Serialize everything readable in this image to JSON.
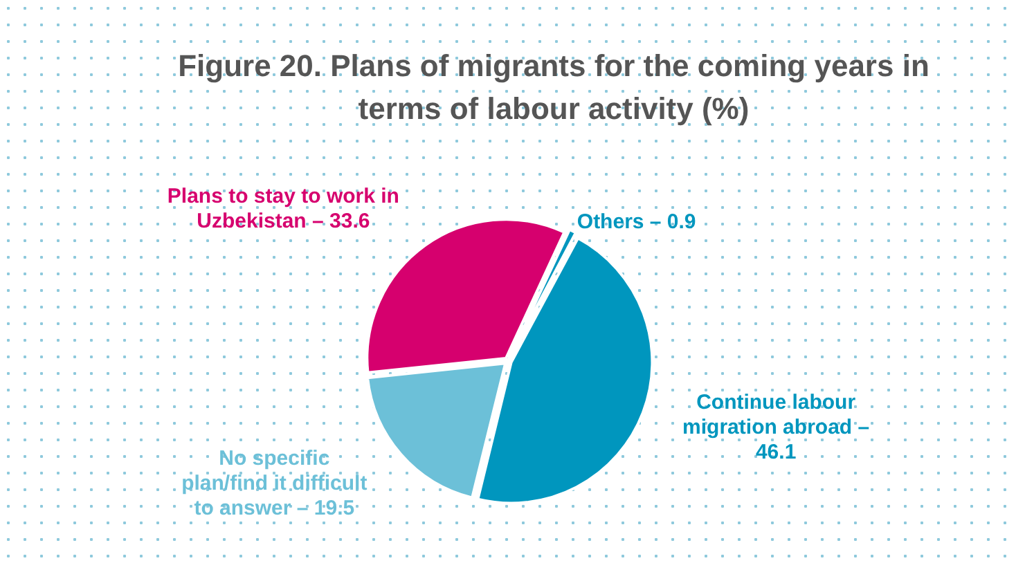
{
  "chart_data": {
    "type": "pie",
    "title": "Figure 20. Plans of migrants for the coming years in terms of labour activity (%)",
    "categories": [
      "Plans to stay to work in Uzbekistan –",
      "Others –",
      "Continue labour migration abroad –",
      "No specific plan/find it difficult to answer –"
    ],
    "values": [
      33.6,
      0.9,
      46.1,
      19.5
    ],
    "colors": [
      "#d6006e",
      "#0096be",
      "#0096be",
      "#6cc0d8"
    ],
    "data_labels": true,
    "legend": false
  }
}
